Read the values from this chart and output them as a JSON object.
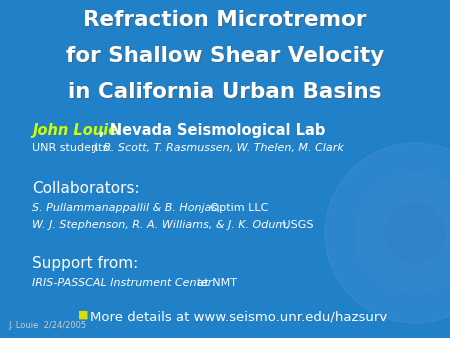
{
  "bg_color": "#2080c8",
  "title_lines": [
    "Refraction Microtremor",
    "for Shallow Shear Velocity",
    "in California Urban Basins"
  ],
  "title_color": "#ffffff",
  "title_fontsize": 15.5,
  "author_name": "John Louie",
  "author_name_color": "#ccff00",
  "author_rest": ", Nevada Seismological Lab",
  "author_rest_color": "#ffffff",
  "author_fontsize": 10.5,
  "students_label": "UNR students: ",
  "students_names": "J. B. Scott, T. Rasmussen, W. Thelen, M. Clark",
  "students_color": "#ffffff",
  "students_fontsize": 8.0,
  "collab_header": "Collaborators:",
  "collab_header_fontsize": 11.0,
  "collab_line1_italic": "S. Pullammanappallil & B. Honjas,",
  "collab_line1_rest": " Optim LLC",
  "collab_line2_italic": "W. J. Stephenson, R. A. Williams, & J. K. Odum,",
  "collab_line2_rest": " USGS",
  "collab_fontsize": 8.0,
  "support_header": "Support from:",
  "support_header_fontsize": 11.0,
  "support_italic": "IRIS-PASSCAL Instrument Center",
  "support_rest": " at NMT",
  "support_fontsize": 8.0,
  "bullet_symbol": "■",
  "bullet_color": "#dddd00",
  "bullet_text": " More details at www.seismo.unr.edu/hazsurv",
  "bullet_fontsize": 9.5,
  "footer_text": "J. Louie  2/24/2005",
  "footer_color": "#cccccc",
  "footer_fontsize": 6.0,
  "white": "#ffffff"
}
